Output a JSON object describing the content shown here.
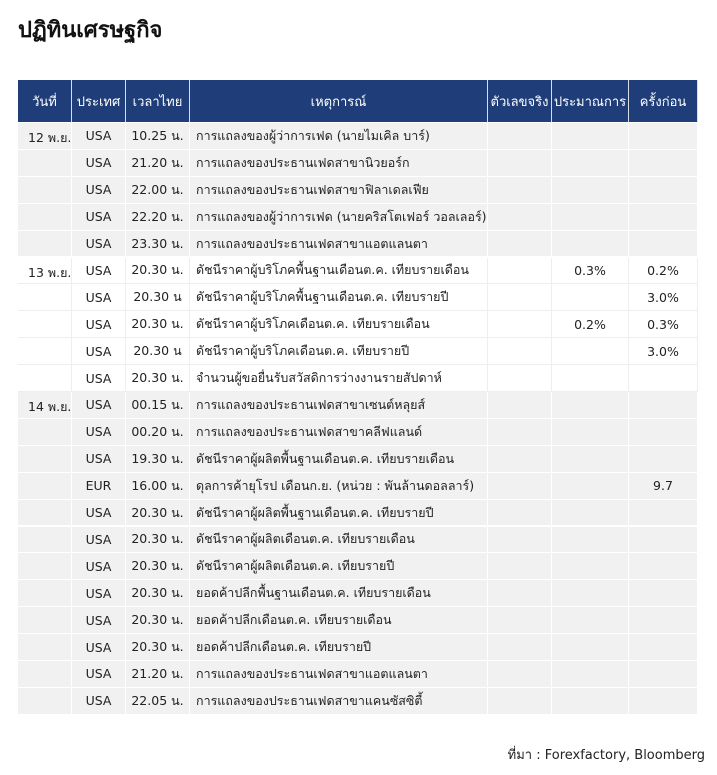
{
  "header": {
    "title": "ปฏิทินเศรษฐกิจ"
  },
  "table": {
    "columns": [
      "วันที่",
      "ประเทศ",
      "เวลาไทย",
      "เหตุการณ์",
      "ตัวเลขจริง",
      "ประมาณการ",
      "ครั้งก่อน"
    ],
    "groups": [
      {
        "date": "12 พ.ย.",
        "rows": [
          {
            "country": "USA",
            "time": "10.25 น.",
            "event": "การแถลงของผู้ว่าการเฟด (นายไมเคิล บาร์)"
          },
          {
            "country": "USA",
            "time": "21.20 น.",
            "event": "การแถลงของประธานเฟดสาขานิวยอร์ก"
          },
          {
            "country": "USA",
            "time": "22.00 น.",
            "event": "การแถลงของประธานเฟดสาขาฟิลาเดลเฟีย"
          },
          {
            "country": "USA",
            "time": "22.20 น.",
            "event": "การแถลงของผู้ว่าการเฟด (นายคริสโตเฟอร์ วอลเลอร์)"
          },
          {
            "country": "USA",
            "time": "23.30 น.",
            "event": "การแถลงของประธานเฟดสาขาแอตแลนตา"
          }
        ]
      },
      {
        "date": "13 พ.ย.",
        "rows": [
          {
            "country": "USA",
            "time": "20.30 น.",
            "event": "ดัชนีราคาผู้บริโภคพื้นฐานเดือนต.ค. เทียบรายเดือน",
            "forecast": "0.3%",
            "previous": "0.2%"
          },
          {
            "country": "USA",
            "time": "20.30 น",
            "event": "ดัชนีราคาผู้บริโภคพื้นฐานเดือนต.ค. เทียบรายปี",
            "previous": "3.0%"
          },
          {
            "country": "USA",
            "time": "20.30 น.",
            "event": "ดัชนีราคาผู้บริโภคเดือนต.ค. เทียบรายเดือน",
            "forecast": "0.2%",
            "previous": "0.3%"
          },
          {
            "country": "USA",
            "time": "20.30 น",
            "event": "ดัชนีราคาผู้บริโภคเดือนต.ค. เทียบรายปี",
            "previous": "3.0%"
          },
          {
            "country": "USA",
            "time": "20.30 น.",
            "event": "จำนวนผู้ขอยื่นรับสวัสดิการว่างงานรายสัปดาห์"
          }
        ]
      },
      {
        "date": "14 พ.ย.",
        "rows": [
          {
            "country": "USA",
            "time": "00.15 น.",
            "event": "การแถลงของประธานเฟดสาขาเซนต์หลุยส์"
          },
          {
            "country": "USA",
            "time": "00.20 น.",
            "event": "การแถลงของประธานเฟดสาขาคลีฟแลนด์"
          },
          {
            "country": "USA",
            "time": "19.30 น.",
            "event": "ดัชนีราคาผู้ผลิตพื้นฐานเดือนต.ค. เทียบรายเดือน"
          },
          {
            "country": "EUR",
            "time": "16.00 น.",
            "event": "ดุลการค้ายุโรป เดือนก.ย. (หน่วย : พันล้านดอลลาร์)",
            "previous": "9.7"
          },
          {
            "country": "USA",
            "time": "20.30 น.",
            "event": "ดัชนีราคาผู้ผลิตพื้นฐานเดือนต.ค. เทียบรายปี"
          },
          {
            "country": "USA",
            "time": "20.30 น.",
            "event": "ดัชนีราคาผู้ผลิตเดือนต.ค. เทียบรายเดือน"
          },
          {
            "country": "USA",
            "time": "20.30 น.",
            "event": "ดัชนีราคาผู้ผลิตเดือนต.ค. เทียบรายปี"
          },
          {
            "country": "USA",
            "time": "20.30 น.",
            "event": "ยอดค้าปลีกพื้นฐานเดือนต.ค. เทียบรายเดือน"
          },
          {
            "country": "USA",
            "time": "20.30 น.",
            "event": "ยอดค้าปลีกเดือนต.ค. เทียบรายเดือน"
          },
          {
            "country": "USA",
            "time": "20.30 น.",
            "event": "ยอดค้าปลีกเดือนต.ค. เทียบรายปี"
          },
          {
            "country": "USA",
            "time": "21.20 น.",
            "event": "การแถลงของประธานเฟดสาขาแอตแลนตา"
          },
          {
            "country": "USA",
            "time": "22.05 น.",
            "event": "การแถลงของประธานเฟดสาขาแคนซัสซิตี้"
          }
        ]
      }
    ]
  },
  "footer": {
    "source": "ที่มา : Forexfactory, Bloomberg"
  }
}
